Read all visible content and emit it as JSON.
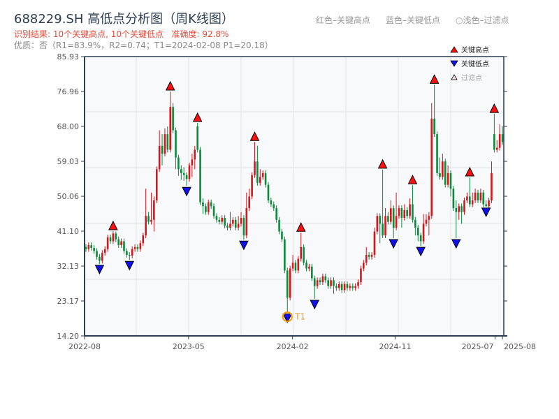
{
  "title": "688229.SH 高低点分析图（周K线图）",
  "subtitle": "识别结果: 10个关键高点, 10个关键低点   准确度: 92.8%",
  "quality_line": "优质：否（R1=83.9%，R2=0.74；T1=2024-02-08 P1=20.18）",
  "top_legend": {
    "red": "红色–关键高点",
    "blue": "蓝色–关键低点",
    "light": "○浅色–过滤点"
  },
  "chart_legend": {
    "high": "关键高点",
    "low": "关键低点",
    "filtered": "过滤点"
  },
  "colors": {
    "up": "#d9141b",
    "down": "#0b8a3a",
    "high_marker": "#ff1010",
    "low_marker": "#1010ee",
    "t1_ring": "#f39c12",
    "plot_bg": "#f7f9fb",
    "axis": "#2c3e50"
  },
  "chart_data": {
    "type": "candlestick",
    "ylim": [
      14.2,
      85.93
    ],
    "yticks": [
      "14.20",
      "23.17",
      "32.13",
      "41.10",
      "50.06",
      "59.03",
      "68.00",
      "76.96",
      "85.93"
    ],
    "xticks": [
      {
        "label": "2022-08",
        "bar": -0.5
      },
      {
        "label": "2023-05",
        "bar": 37.7
      },
      {
        "label": "2024-02",
        "bar": 75.9
      },
      {
        "label": "2024-11",
        "bar": 113.6
      },
      {
        "label": "2025-07",
        "bar": 150.3
      },
      {
        "label": "2025-08",
        "bar": 153
      }
    ],
    "ohlc": [
      [
        37.0,
        37.7,
        35.8,
        36.5
      ],
      [
        36.5,
        38.2,
        35.8,
        37.5
      ],
      [
        37.5,
        38.2,
        36.1,
        36.8
      ],
      [
        36.8,
        37.5,
        35.3,
        36.0
      ],
      [
        36.0,
        36.7,
        33.8,
        34.5
      ],
      [
        34.5,
        35.2,
        32.7,
        33.5
      ],
      [
        33.5,
        36.2,
        32.8,
        35.5
      ],
      [
        35.5,
        37.2,
        34.8,
        36.5
      ],
      [
        36.5,
        40.2,
        35.8,
        39.5
      ],
      [
        39.5,
        40.2,
        37.8,
        38.5
      ],
      [
        38.5,
        41.1,
        37.8,
        40.5
      ],
      [
        40.5,
        41.0,
        38.3,
        39.0
      ],
      [
        39.0,
        39.7,
        36.8,
        37.5
      ],
      [
        37.5,
        39.2,
        36.8,
        38.5
      ],
      [
        38.5,
        39.2,
        35.3,
        36.0
      ],
      [
        36.0,
        36.7,
        34.3,
        35.0
      ],
      [
        35.0,
        35.7,
        33.7,
        34.8
      ],
      [
        34.8,
        37.2,
        34.1,
        36.5
      ],
      [
        36.5,
        37.7,
        35.8,
        37.0
      ],
      [
        37.0,
        37.7,
        35.8,
        36.5
      ],
      [
        36.5,
        38.7,
        35.8,
        38.0
      ],
      [
        38.0,
        40.7,
        37.3,
        40.0
      ],
      [
        40.0,
        52.0,
        39.3,
        45.0
      ],
      [
        45.0,
        46.0,
        42.8,
        43.5
      ],
      [
        43.5,
        51.0,
        42.8,
        44.0
      ],
      [
        44.0,
        50.0,
        41.0,
        49.0
      ],
      [
        49.0,
        57.7,
        48.3,
        57.0
      ],
      [
        57.0,
        67.0,
        56.3,
        63.0
      ],
      [
        63.0,
        66.0,
        58.0,
        61.0
      ],
      [
        61.0,
        67.5,
        60.3,
        66.0
      ],
      [
        66.0,
        68.0,
        61.3,
        62.0
      ],
      [
        62.0,
        76.96,
        61.3,
        73.0
      ],
      [
        73.0,
        74.0,
        66.3,
        67.0
      ],
      [
        67.0,
        67.7,
        57.0,
        60.0
      ],
      [
        60.0,
        60.7,
        55.3,
        57.0
      ],
      [
        57.0,
        58.0,
        54.3,
        56.0
      ],
      [
        56.0,
        57.5,
        54.0,
        55.5
      ],
      [
        55.5,
        56.2,
        52.7,
        54.5
      ],
      [
        54.5,
        58.7,
        53.8,
        58.0
      ],
      [
        58.0,
        61.0,
        55.0,
        59.5
      ],
      [
        59.5,
        63.0,
        57.0,
        62.0
      ],
      [
        68.0,
        68.9,
        61.3,
        62.0
      ],
      [
        62.0,
        62.7,
        47.8,
        48.5
      ],
      [
        48.5,
        49.5,
        45.5,
        47.5
      ],
      [
        47.5,
        48.2,
        45.3,
        46.0
      ],
      [
        46.0,
        49.2,
        45.3,
        48.5
      ],
      [
        48.5,
        49.2,
        46.8,
        47.5
      ],
      [
        47.5,
        48.2,
        44.3,
        45.0
      ],
      [
        45.0,
        45.7,
        43.3,
        44.0
      ],
      [
        44.0,
        44.7,
        42.8,
        43.5
      ],
      [
        43.5,
        45.2,
        42.8,
        44.5
      ],
      [
        44.5,
        45.2,
        41.8,
        42.5
      ],
      [
        42.5,
        43.2,
        41.3,
        42.0
      ],
      [
        42.0,
        46.0,
        41.3,
        43.0
      ],
      [
        43.0,
        44.7,
        42.3,
        44.0
      ],
      [
        44.0,
        44.7,
        41.3,
        42.0
      ],
      [
        42.0,
        45.0,
        41.3,
        43.0
      ],
      [
        43.0,
        46.0,
        42.3,
        44.5
      ],
      [
        44.5,
        45.2,
        38.9,
        40.0
      ],
      [
        40.0,
        51.0,
        39.3,
        47.0
      ],
      [
        47.0,
        52.0,
        46.3,
        50.0
      ],
      [
        50.0,
        56.2,
        49.3,
        55.5
      ],
      [
        55.5,
        64.0,
        54.8,
        59.0
      ],
      [
        59.0,
        63.0,
        52.8,
        53.5
      ],
      [
        53.5,
        57.0,
        52.8,
        55.0
      ],
      [
        55.0,
        56.7,
        54.3,
        56.0
      ],
      [
        56.0,
        56.7,
        52.3,
        53.0
      ],
      [
        53.0,
        53.7,
        48.3,
        49.0
      ],
      [
        49.0,
        49.7,
        47.3,
        48.0
      ],
      [
        48.0,
        48.7,
        46.3,
        47.0
      ],
      [
        47.0,
        47.7,
        43.3,
        44.0
      ],
      [
        44.0,
        44.7,
        40.3,
        41.0
      ],
      [
        41.0,
        41.7,
        38.3,
        39.0
      ],
      [
        39.0,
        39.7,
        30.3,
        31.0
      ],
      [
        31.0,
        31.7,
        20.18,
        24.0
      ],
      [
        24.0,
        32.2,
        23.3,
        31.5
      ],
      [
        31.5,
        35.0,
        30.8,
        33.0
      ],
      [
        33.0,
        33.7,
        30.3,
        31.0
      ],
      [
        31.0,
        34.7,
        30.3,
        34.0
      ],
      [
        34.0,
        40.7,
        33.3,
        37.0
      ],
      [
        37.0,
        37.7,
        32.3,
        33.0
      ],
      [
        33.0,
        33.7,
        30.8,
        31.5
      ],
      [
        31.5,
        32.7,
        30.8,
        32.0
      ],
      [
        32.0,
        32.7,
        28.3,
        29.0
      ],
      [
        29.0,
        29.7,
        23.7,
        27.0
      ],
      [
        27.0,
        29.2,
        26.3,
        28.5
      ],
      [
        28.5,
        29.2,
        27.3,
        28.0
      ],
      [
        28.0,
        30.2,
        27.3,
        29.5
      ],
      [
        29.5,
        30.2,
        27.8,
        28.5
      ],
      [
        28.5,
        29.2,
        26.3,
        27.0
      ],
      [
        27.0,
        29.2,
        26.3,
        28.5
      ],
      [
        28.5,
        29.2,
        25.0,
        27.0
      ],
      [
        27.0,
        27.7,
        25.8,
        26.5
      ],
      [
        26.5,
        28.2,
        25.8,
        27.5
      ],
      [
        27.5,
        28.2,
        25.3,
        26.0
      ],
      [
        26.0,
        28.2,
        25.3,
        27.5
      ],
      [
        27.5,
        28.2,
        25.8,
        26.5
      ],
      [
        26.5,
        27.7,
        25.8,
        27.0
      ],
      [
        27.0,
        27.7,
        25.8,
        26.5
      ],
      [
        26.5,
        27.7,
        25.8,
        27.0
      ],
      [
        27.0,
        28.7,
        26.3,
        28.0
      ],
      [
        28.0,
        32.2,
        27.3,
        31.5
      ],
      [
        31.5,
        33.7,
        30.8,
        33.0
      ],
      [
        33.0,
        37.0,
        32.3,
        35.0
      ],
      [
        35.0,
        35.7,
        33.8,
        34.5
      ],
      [
        34.5,
        35.7,
        33.8,
        35.0
      ],
      [
        35.0,
        42.0,
        34.3,
        41.0
      ],
      [
        41.0,
        45.7,
        40.3,
        45.0
      ],
      [
        45.0,
        45.7,
        38.0,
        43.0
      ],
      [
        43.0,
        56.9,
        39.3,
        40.0
      ],
      [
        40.0,
        47.0,
        39.3,
        45.0
      ],
      [
        45.0,
        46.0,
        42.8,
        43.5
      ],
      [
        43.5,
        49.0,
        42.8,
        47.0
      ],
      [
        47.0,
        47.7,
        39.3,
        42.0
      ],
      [
        42.0,
        51.0,
        41.3,
        45.0
      ],
      [
        45.0,
        47.7,
        44.3,
        47.0
      ],
      [
        47.0,
        47.7,
        42.0,
        44.5
      ],
      [
        44.5,
        48.0,
        43.8,
        46.5
      ],
      [
        46.5,
        47.2,
        44.3,
        45.0
      ],
      [
        45.0,
        49.5,
        44.3,
        48.0
      ],
      [
        48.0,
        52.9,
        43.3,
        44.0
      ],
      [
        44.0,
        44.7,
        40.0,
        42.0
      ],
      [
        42.0,
        42.7,
        38.5,
        40.0
      ],
      [
        40.0,
        40.7,
        37.3,
        38.5
      ],
      [
        38.5,
        45.5,
        37.8,
        43.0
      ],
      [
        43.0,
        45.5,
        42.3,
        44.0
      ],
      [
        44.0,
        46.0,
        40.0,
        45.0
      ],
      [
        45.0,
        74.0,
        44.3,
        70.0
      ],
      [
        70.0,
        78.7,
        65.3,
        66.0
      ],
      [
        66.0,
        66.7,
        55.3,
        56.0
      ],
      [
        56.0,
        60.0,
        54.3,
        55.0
      ],
      [
        55.0,
        61.0,
        54.3,
        59.0
      ],
      [
        59.0,
        59.7,
        52.3,
        53.0
      ],
      [
        53.0,
        58.0,
        52.3,
        56.0
      ],
      [
        56.0,
        56.7,
        50.0,
        52.0
      ],
      [
        52.0,
        52.7,
        46.3,
        47.0
      ],
      [
        47.0,
        49.0,
        39.3,
        46.0
      ],
      [
        46.0,
        48.2,
        44.0,
        47.5
      ],
      [
        47.5,
        48.2,
        43.0,
        46.0
      ],
      [
        46.0,
        49.7,
        45.3,
        49.0
      ],
      [
        49.0,
        51.0,
        48.3,
        50.0
      ],
      [
        50.0,
        54.9,
        47.3,
        48.0
      ],
      [
        48.0,
        51.0,
        47.3,
        49.0
      ],
      [
        49.0,
        52.0,
        48.3,
        51.0
      ],
      [
        51.0,
        51.7,
        48.3,
        49.0
      ],
      [
        49.0,
        52.0,
        48.3,
        51.0
      ],
      [
        51.0,
        51.7,
        47.3,
        48.0
      ],
      [
        48.0,
        49.0,
        47.4,
        47.5
      ],
      [
        47.5,
        49.7,
        46.8,
        49.0
      ],
      [
        49.0,
        59.0,
        48.3,
        56.0
      ],
      [
        66.0,
        71.2,
        61.3,
        62.0
      ],
      [
        62.0,
        64.5,
        61.3,
        62.5
      ],
      [
        62.5,
        68.5,
        61.8,
        66.0
      ],
      [
        66.0,
        68.0,
        63.3,
        64.0
      ]
    ],
    "key_highs": [
      10,
      31,
      41,
      62,
      79,
      109,
      120,
      128,
      141,
      150
    ],
    "key_lows": [
      5,
      16,
      37,
      58,
      74,
      84,
      113,
      123,
      136,
      147
    ],
    "annotation": {
      "label": "T1",
      "bar": 74
    },
    "legend": "top-right",
    "grid": true
  }
}
